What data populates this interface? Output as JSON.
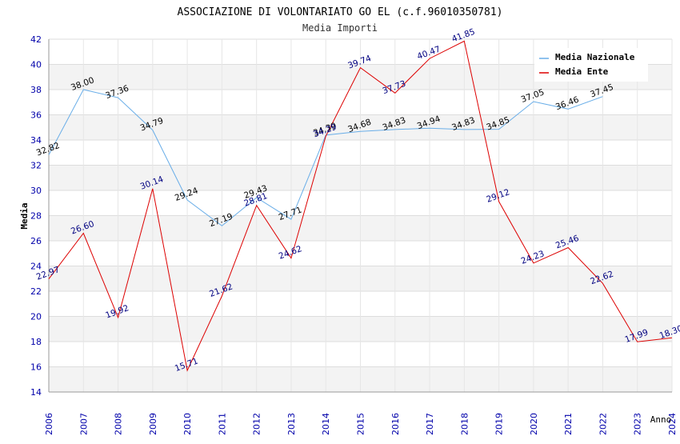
{
  "chart_data": {
    "type": "line",
    "title": "ASSOCIAZIONE DI VOLONTARIATO GO EL (c.f.96010350781)",
    "subtitle": "Media Importi",
    "xlabel": "Anno",
    "ylabel": "Media",
    "ylim": [
      14,
      42
    ],
    "yticks": [
      14,
      16,
      18,
      20,
      22,
      24,
      26,
      28,
      30,
      32,
      34,
      36,
      38,
      40,
      42
    ],
    "x": [
      "2006",
      "2007",
      "2008",
      "2009",
      "2010",
      "2011",
      "2012",
      "2013",
      "2014",
      "2015",
      "2016",
      "2017",
      "2018",
      "2019",
      "2020",
      "2021",
      "2022",
      "2023",
      "2024"
    ],
    "grid": true,
    "legend_position": "top-right",
    "series": [
      {
        "name": "Media Nazionale",
        "color": "#6aaee8",
        "label_color": "#000000",
        "values": [
          32.82,
          38.0,
          37.36,
          34.79,
          29.24,
          27.19,
          29.43,
          27.71,
          34.39,
          34.68,
          34.83,
          34.94,
          34.83,
          34.85,
          37.05,
          36.46,
          37.45,
          null,
          null
        ],
        "labels": [
          "32.82",
          "38.00",
          "37.36",
          "34.79",
          "29.24",
          "27.19",
          "29.43",
          "27.71",
          "34.39",
          "34.68",
          "34.83",
          "34.94",
          "34.83",
          "34.85",
          "37.05",
          "36.46",
          "37.45",
          null,
          null
        ]
      },
      {
        "name": "Media Ente",
        "color": "#dd0000",
        "label_color": "#000080",
        "values": [
          22.97,
          26.6,
          19.92,
          30.14,
          15.71,
          21.62,
          28.81,
          24.62,
          34.29,
          39.74,
          37.73,
          40.47,
          41.85,
          29.12,
          24.23,
          25.46,
          22.62,
          17.99,
          18.3
        ],
        "labels": [
          "22.97",
          "26.60",
          "19.92",
          "30.14",
          "15.71",
          "21.62",
          "28.81",
          "24.62",
          "34.29",
          "39.74",
          "37.73",
          "40.47",
          "41.85",
          "29.12",
          "24.23",
          "25.46",
          "22.62",
          "17.99",
          "18.30"
        ]
      }
    ]
  }
}
